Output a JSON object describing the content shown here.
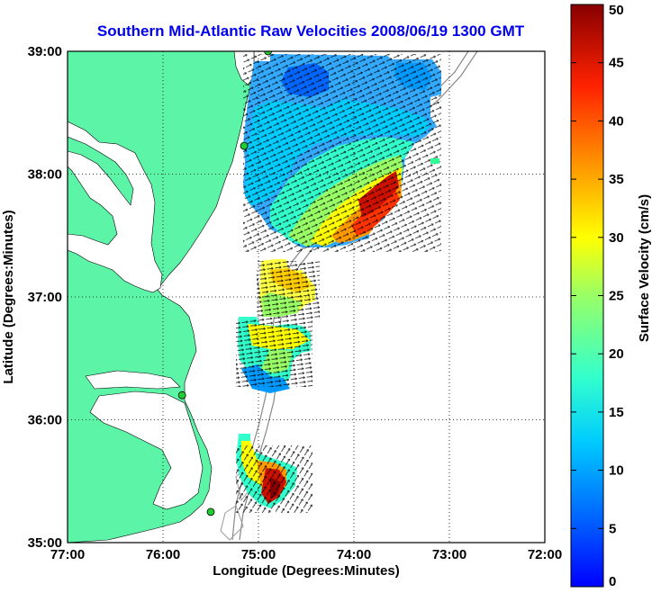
{
  "title": "Southern Mid-Atlantic Raw Velocities 2008/06/19 1300 GMT",
  "axes": {
    "x_label": "Longitude (Degrees:Minutes)",
    "y_label": "Latitude (Degrees:Minutes)",
    "x_ticks": [
      "77:00",
      "76:00",
      "75:00",
      "74:00",
      "73:00",
      "72:00"
    ],
    "y_ticks": [
      "39:00",
      "38:00",
      "37:00",
      "36:00",
      "35:00"
    ],
    "x_range": [
      -77,
      -72
    ],
    "y_range": [
      35,
      39
    ],
    "grid": "dotted"
  },
  "colorbar": {
    "label": "Surface Velocity (cm/s)",
    "ticks": [
      "0",
      "5",
      "10",
      "15",
      "20",
      "25",
      "30",
      "35",
      "40",
      "45",
      "50"
    ],
    "range": [
      0,
      50
    ],
    "colormap": "jet"
  },
  "colors": {
    "land": "#5cf5a8",
    "title": "#0000ee",
    "station": "#22cc33"
  },
  "chart_data": {
    "type": "heatmap",
    "title": "Southern Mid-Atlantic Raw Velocities 2008/06/19 1300 GMT",
    "xlabel": "Longitude (Degrees:Minutes)",
    "ylabel": "Latitude (Degrees:Minutes)",
    "xlim": [
      -77,
      -72
    ],
    "ylim": [
      35,
      39
    ],
    "value_label": "Surface Velocity (cm/s)",
    "value_range": [
      0,
      50
    ],
    "stations": [
      {
        "lon": -74.9,
        "lat": 39.0
      },
      {
        "lon": -75.15,
        "lat": 38.23
      },
      {
        "lon": -75.8,
        "lat": 36.2
      },
      {
        "lon": -75.5,
        "lat": 35.25
      }
    ]
  }
}
